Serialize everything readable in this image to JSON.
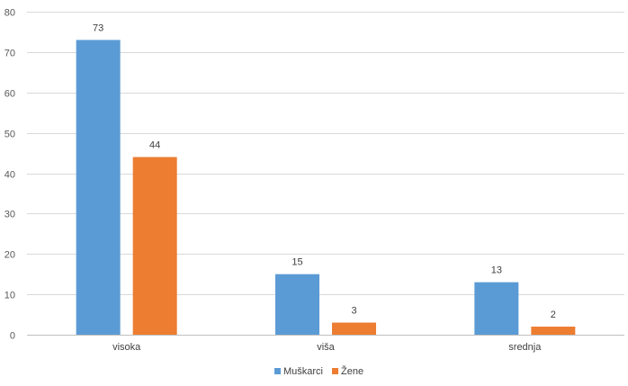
{
  "chart_data": {
    "type": "bar",
    "categories": [
      "visoka",
      "viša",
      "srednja"
    ],
    "series": [
      {
        "name": "Muškarci",
        "values": [
          73,
          15,
          13
        ],
        "color": "#5B9BD5"
      },
      {
        "name": "Žene",
        "values": [
          44,
          3,
          2
        ],
        "color": "#ED7D31"
      }
    ],
    "ylim": [
      0,
      80
    ],
    "yticks": [
      0,
      10,
      20,
      30,
      40,
      50,
      60,
      70,
      80
    ],
    "grid": true,
    "legend": "bottom-center",
    "colors": {
      "grid": "#D9D9D9",
      "axis": "#BFBFBF"
    }
  }
}
